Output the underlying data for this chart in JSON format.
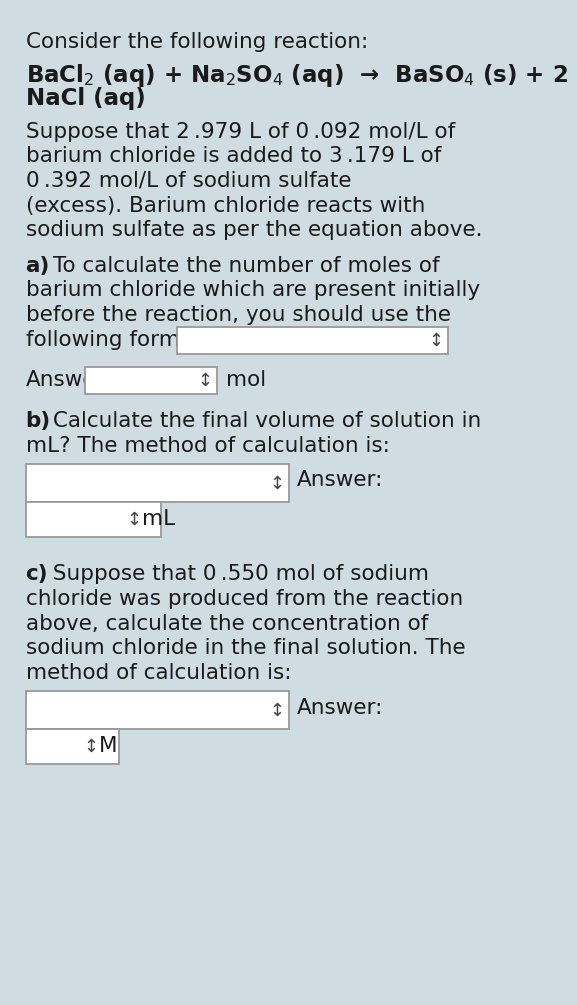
{
  "bg_color": "#cfdde3",
  "text_color": "#1a1a1a",
  "box_color": "#ffffff",
  "box_border": "#999999",
  "title": "Consider the following reaction:",
  "reaction_line1": "BaCl$_2$ (aq) + Na$_2$SO$_4$ (aq)  →  BaSO$_4$ (s) + 2",
  "reaction_line2": "NaCl (aq)",
  "para1_lines": [
    "Suppose that 2 .979 L of 0 .092 mol/L of",
    "barium chloride is added to 3 .179 L of",
    "0 .392 mol/L of sodium sulfate",
    "(excess). Barium chloride reacts with",
    "sodium sulfate as per the equation above."
  ],
  "part_a_label": "a)",
  "part_a_lines": [
    " To calculate the number of moles of",
    "barium chloride which are present initially",
    "before the reaction, you should use the",
    "following formula:"
  ],
  "answer_label_a": "Answer:",
  "mol_label": "mol",
  "part_b_label": "b)",
  "part_b_lines": [
    " Calculate the final volume of solution in",
    "mL? The method of calculation is:"
  ],
  "answer_label_b": "Answer:",
  "ml_label": "mL",
  "part_c_label": "c)",
  "part_c_lines": [
    " Suppose that 0 .550 mol of sodium",
    "chloride was produced from the reaction",
    "above, calculate the concentration of",
    "sodium chloride in the final solution. The",
    "method of calculation is:"
  ],
  "answer_label_c": "Answer:",
  "m_label": "M",
  "fontsize": 15.5,
  "fontsize_title": 15.5,
  "fontsize_reaction": 16.5
}
